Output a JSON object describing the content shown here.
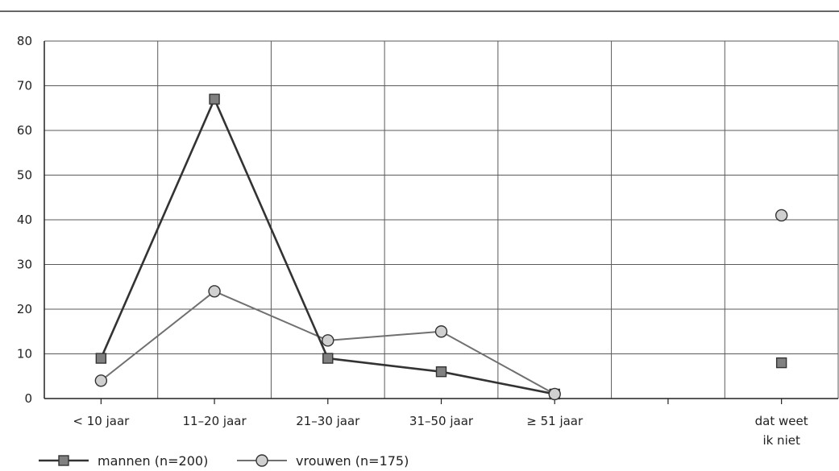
{
  "chart_data": {
    "type": "line",
    "categories": [
      "< 10 jaar",
      "11–20 jaar",
      "21–30 jaar",
      "31–50 jaar",
      "≥ 51 jaar",
      "",
      "dat weet\nik niet"
    ],
    "ylim": [
      0,
      80
    ],
    "yticks": [
      0,
      10,
      20,
      30,
      40,
      50,
      60,
      70,
      80
    ],
    "grid": true,
    "legend_position": "bottom-left",
    "series": [
      {
        "name": "mannen (n=200)",
        "marker": "square",
        "line_color": "#333333",
        "marker_fill": "#808080",
        "values": [
          9,
          67,
          9,
          6,
          1,
          null,
          8
        ]
      },
      {
        "name": "vrouwen (n=175)",
        "marker": "circle",
        "line_color": "#707070",
        "marker_fill": "#d0d0d0",
        "values": [
          4,
          24,
          13,
          15,
          1,
          null,
          41
        ]
      }
    ]
  }
}
